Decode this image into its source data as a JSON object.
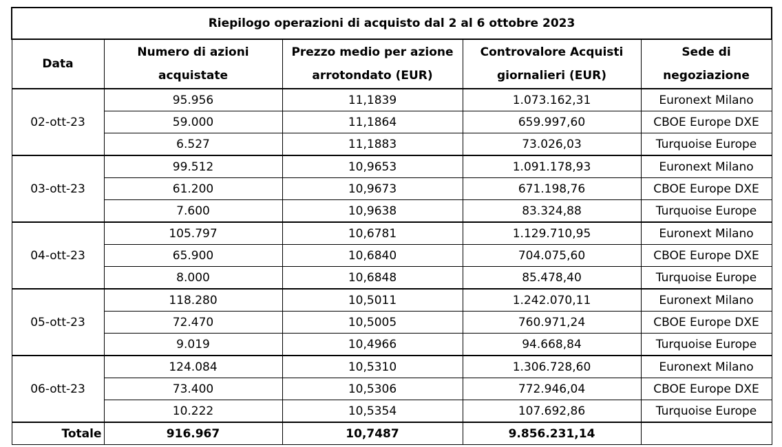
{
  "title": "Riepilogo operazioni di acquisto dal 2 al 6 ottobre 2023",
  "headers": {
    "date": "Data",
    "quantity": "Numero di azioni acquistate",
    "price": "Prezzo medio per azione arrotondato (EUR)",
    "value": "Controvalore Acquisti giornalieri (EUR)",
    "venue": "Sede di negoziazione"
  },
  "groups": [
    {
      "date": "02-ott-23",
      "rows": [
        {
          "quantity": "95.956",
          "price": "11,1839",
          "value": "1.073.162,31",
          "venue": "Euronext Milano"
        },
        {
          "quantity": "59.000",
          "price": "11,1864",
          "value": "659.997,60",
          "venue": "CBOE Europe DXE"
        },
        {
          "quantity": "6.527",
          "price": "11,1883",
          "value": "73.026,03",
          "venue": "Turquoise Europe"
        }
      ]
    },
    {
      "date": "03-ott-23",
      "rows": [
        {
          "quantity": "99.512",
          "price": "10,9653",
          "value": "1.091.178,93",
          "venue": "Euronext Milano"
        },
        {
          "quantity": "61.200",
          "price": "10,9673",
          "value": "671.198,76",
          "venue": "CBOE Europe DXE"
        },
        {
          "quantity": "7.600",
          "price": "10,9638",
          "value": "83.324,88",
          "venue": "Turquoise Europe"
        }
      ]
    },
    {
      "date": "04-ott-23",
      "rows": [
        {
          "quantity": "105.797",
          "price": "10,6781",
          "value": "1.129.710,95",
          "venue": "Euronext Milano"
        },
        {
          "quantity": "65.900",
          "price": "10,6840",
          "value": "704.075,60",
          "venue": "CBOE Europe DXE"
        },
        {
          "quantity": "8.000",
          "price": "10,6848",
          "value": "85.478,40",
          "venue": "Turquoise Europe"
        }
      ]
    },
    {
      "date": "05-ott-23",
      "rows": [
        {
          "quantity": "118.280",
          "price": "10,5011",
          "value": "1.242.070,11",
          "venue": "Euronext Milano"
        },
        {
          "quantity": "72.470",
          "price": "10,5005",
          "value": "760.971,24",
          "venue": "CBOE Europe DXE"
        },
        {
          "quantity": "9.019",
          "price": "10,4966",
          "value": "94.668,84",
          "venue": "Turquoise Europe"
        }
      ]
    },
    {
      "date": "06-ott-23",
      "rows": [
        {
          "quantity": "124.084",
          "price": "10,5310",
          "value": "1.306.728,60",
          "venue": "Euronext Milano"
        },
        {
          "quantity": "73.400",
          "price": "10,5306",
          "value": "772.946,04",
          "venue": "CBOE Europe DXE"
        },
        {
          "quantity": "10.222",
          "price": "10,5354",
          "value": "107.692,86",
          "venue": "Turquoise Europe"
        }
      ]
    }
  ],
  "total": {
    "label": "Totale",
    "quantity": "916.967",
    "price": "10,7487",
    "value": "9.856.231,14",
    "venue": ""
  }
}
